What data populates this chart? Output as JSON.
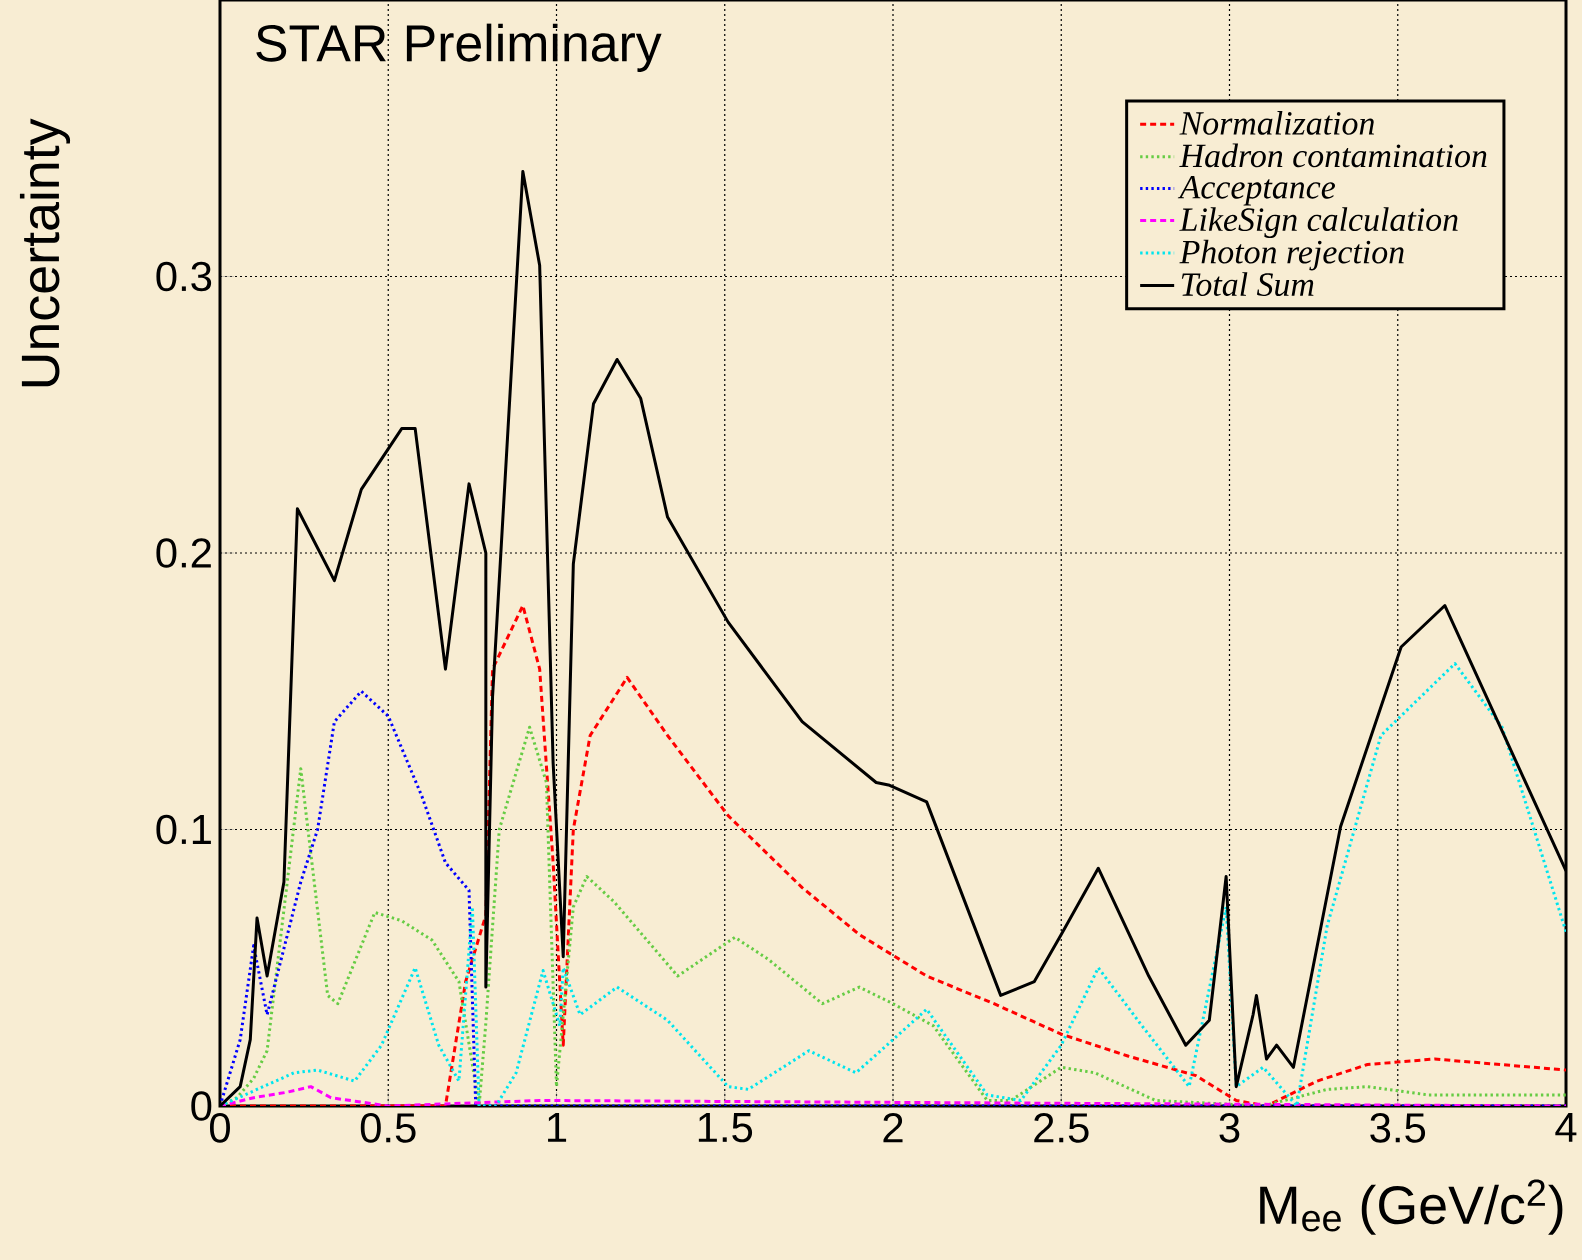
{
  "chart_data": {
    "type": "line",
    "xlabel": "M$_{ee}$ (GeV/c$^{2}$)",
    "ylabel": "Uncertainty",
    "annotations": [
      "STAR Preliminary"
    ],
    "xlim": [
      0,
      4
    ],
    "ylim": [
      0,
      0.4
    ],
    "xticks": [
      0,
      0.5,
      1,
      1.5,
      2,
      2.5,
      3,
      3.5,
      4
    ],
    "yticks": [
      0,
      0.1,
      0.2,
      0.3
    ],
    "grid": true,
    "legend": "top right",
    "series": [
      {
        "name": "Normalization",
        "color": "#ff0000",
        "line_style": "dashed",
        "x": [
          0,
          0.67,
          0.73,
          0.79,
          0.81,
          0.9,
          0.95,
          0.99,
          1.02,
          1.05,
          1.1,
          1.21,
          1.33,
          1.51,
          1.73,
          1.9,
          2.1,
          2.3,
          2.5,
          2.7,
          2.9,
          3.02,
          3.11,
          3.26,
          3.41,
          3.61,
          4.0
        ],
        "values": [
          0,
          0,
          0.045,
          0.069,
          0.158,
          0.181,
          0.158,
          0.088,
          0.022,
          0.1,
          0.134,
          0.155,
          0.134,
          0.105,
          0.079,
          0.062,
          0.047,
          0.037,
          0.026,
          0.018,
          0.011,
          0.002,
          0,
          0.009,
          0.015,
          0.017,
          0.013
        ]
      },
      {
        "name": "Hadron contamination",
        "color": "#66cc44",
        "line_style": "dotted",
        "x": [
          0,
          0.05,
          0.1,
          0.14,
          0.24,
          0.32,
          0.35,
          0.46,
          0.54,
          0.63,
          0.71,
          0.77,
          0.79,
          0.83,
          0.92,
          0.97,
          1.0,
          1.05,
          1.09,
          1.17,
          1.36,
          1.53,
          1.63,
          1.79,
          1.9,
          2.0,
          2.12,
          2.28,
          2.35,
          2.5,
          2.6,
          2.78,
          3.1,
          3.29,
          3.41,
          3.59,
          4.0
        ],
        "values": [
          0,
          0.003,
          0.01,
          0.02,
          0.122,
          0.04,
          0.037,
          0.07,
          0.067,
          0.06,
          0.045,
          0,
          0.03,
          0.1,
          0.137,
          0.117,
          0.007,
          0.072,
          0.083,
          0.074,
          0.047,
          0.061,
          0.053,
          0.037,
          0.043,
          0.037,
          0.029,
          0.002,
          0.002,
          0.014,
          0.012,
          0.002,
          0,
          0.006,
          0.007,
          0.004,
          0.004
        ]
      },
      {
        "name": "Acceptance",
        "color": "#0000ff",
        "line_style": "dotted",
        "x": [
          0,
          0.06,
          0.1,
          0.14,
          0.24,
          0.29,
          0.34,
          0.42,
          0.5,
          0.6,
          0.67,
          0.74,
          0.76,
          4.0
        ],
        "values": [
          0,
          0.024,
          0.058,
          0.033,
          0.081,
          0.1,
          0.139,
          0.15,
          0.141,
          0.112,
          0.088,
          0.078,
          0,
          0
        ]
      },
      {
        "name": "LikeSign calculation",
        "color": "#ff00ff",
        "line_style": "dashed",
        "x": [
          0,
          0.1,
          0.2,
          0.27,
          0.33,
          0.5,
          0.95,
          4.0
        ],
        "values": [
          0,
          0.003,
          0.005,
          0.007,
          0.003,
          0,
          0.002,
          0
        ]
      },
      {
        "name": "Photon rejection",
        "color": "#00e5ee",
        "line_style": "dotted",
        "x": [
          0,
          0.22,
          0.29,
          0.4,
          0.48,
          0.58,
          0.65,
          0.71,
          0.75,
          0.77,
          0.8,
          0.82,
          0.88,
          0.96,
          1.01,
          1.02,
          1.07,
          1.18,
          1.33,
          1.51,
          1.57,
          1.75,
          1.89,
          2.0,
          2.1,
          2.28,
          2.38,
          2.5,
          2.61,
          2.74,
          2.88,
          2.99,
          3.02,
          3.1,
          3.2,
          3.29,
          3.45,
          3.67,
          3.81,
          4.0
        ],
        "values": [
          0,
          0.012,
          0.013,
          0.009,
          0.022,
          0.05,
          0.022,
          0.009,
          0.072,
          0,
          null,
          0,
          0.012,
          0.049,
          0.029,
          0.05,
          0.033,
          0.043,
          0.031,
          0.007,
          0.006,
          0.02,
          0.012,
          0.024,
          0.035,
          0.004,
          0.002,
          0.022,
          0.05,
          0.029,
          0.007,
          0.072,
          0.007,
          0.014,
          0,
          0.065,
          0.134,
          0.16,
          0.137,
          0.063
        ]
      },
      {
        "name": "Total Sum",
        "color": "#000000",
        "line_style": "solid",
        "x": [
          0,
          0.06,
          0.09,
          0.11,
          0.14,
          0.19,
          0.23,
          0.34,
          0.42,
          0.54,
          0.58,
          0.67,
          0.74,
          0.79,
          0.79,
          0.81,
          0.9,
          0.95,
          0.99,
          1.02,
          1.05,
          1.11,
          1.18,
          1.25,
          1.33,
          1.51,
          1.73,
          1.95,
          1.99,
          2.1,
          2.32,
          2.42,
          2.5,
          2.61,
          2.76,
          2.87,
          2.94,
          2.99,
          3.02,
          3.07,
          3.08,
          3.11,
          3.14,
          3.19,
          3.33,
          3.51,
          3.64,
          4.0
        ],
        "values": [
          0,
          0.007,
          0.024,
          0.068,
          0.047,
          0.081,
          0.216,
          0.19,
          0.223,
          0.245,
          0.245,
          0.158,
          0.225,
          0.2,
          0.043,
          0.148,
          0.338,
          0.304,
          0.124,
          0.054,
          0.196,
          0.254,
          0.27,
          0.256,
          0.213,
          0.175,
          0.139,
          0.117,
          0.116,
          0.11,
          0.04,
          0.045,
          0.062,
          0.086,
          0.047,
          0.022,
          0.031,
          0.083,
          0.007,
          0.033,
          0.04,
          0.017,
          0.022,
          0.014,
          0.101,
          0.166,
          0.181,
          0.085
        ]
      }
    ]
  }
}
